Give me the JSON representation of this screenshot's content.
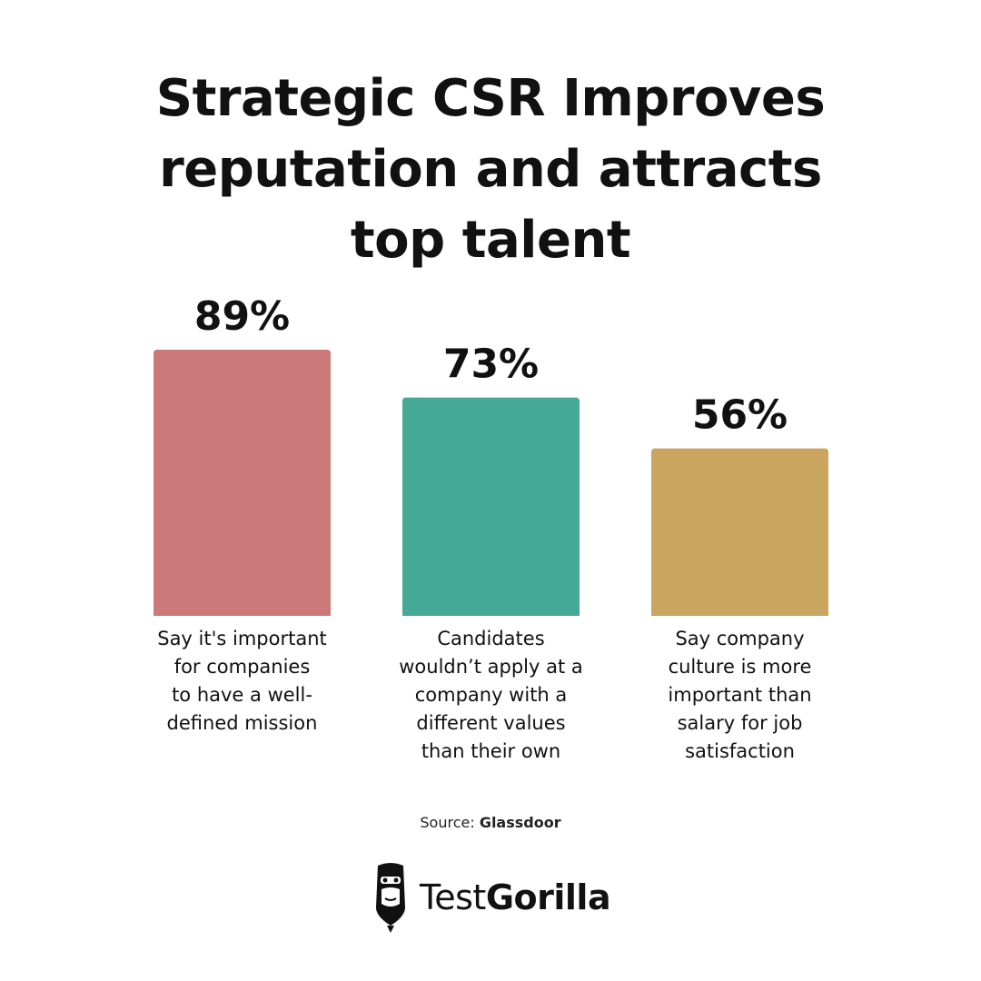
{
  "title_lines": [
    "Strategic CSR Improves",
    "reputation and attracts",
    "top talent"
  ],
  "chart_data": {
    "type": "bar",
    "values": [
      89,
      73,
      56
    ],
    "value_labels": [
      "89%",
      "73%",
      "56%"
    ],
    "categories": [
      "Say it's important for companies to have a well-defined mission",
      "Candidates wouldn’t apply at a company with a different values than their own",
      "Say company culture is more important than salary for job satisfaction"
    ],
    "category_label_lines": [
      [
        "Say it's important",
        "for companies",
        "to have a well-",
        "defined mission"
      ],
      [
        "Candidates",
        "wouldn’t apply at a",
        "company with a",
        "different values",
        "than their own"
      ],
      [
        "Say company",
        "culture is more",
        "important than",
        "salary for job",
        "satisfaction"
      ]
    ],
    "colors": [
      "#cb7a79",
      "#46a997",
      "#c9a55f"
    ],
    "ylim": [
      0,
      100
    ],
    "grid": false,
    "legend": "none"
  },
  "source": {
    "prefix": "Source:",
    "name": "Glassdoor"
  },
  "logo": {
    "icon": "gorilla-icon",
    "text_regular": "Test",
    "text_bold": "Gorilla"
  }
}
